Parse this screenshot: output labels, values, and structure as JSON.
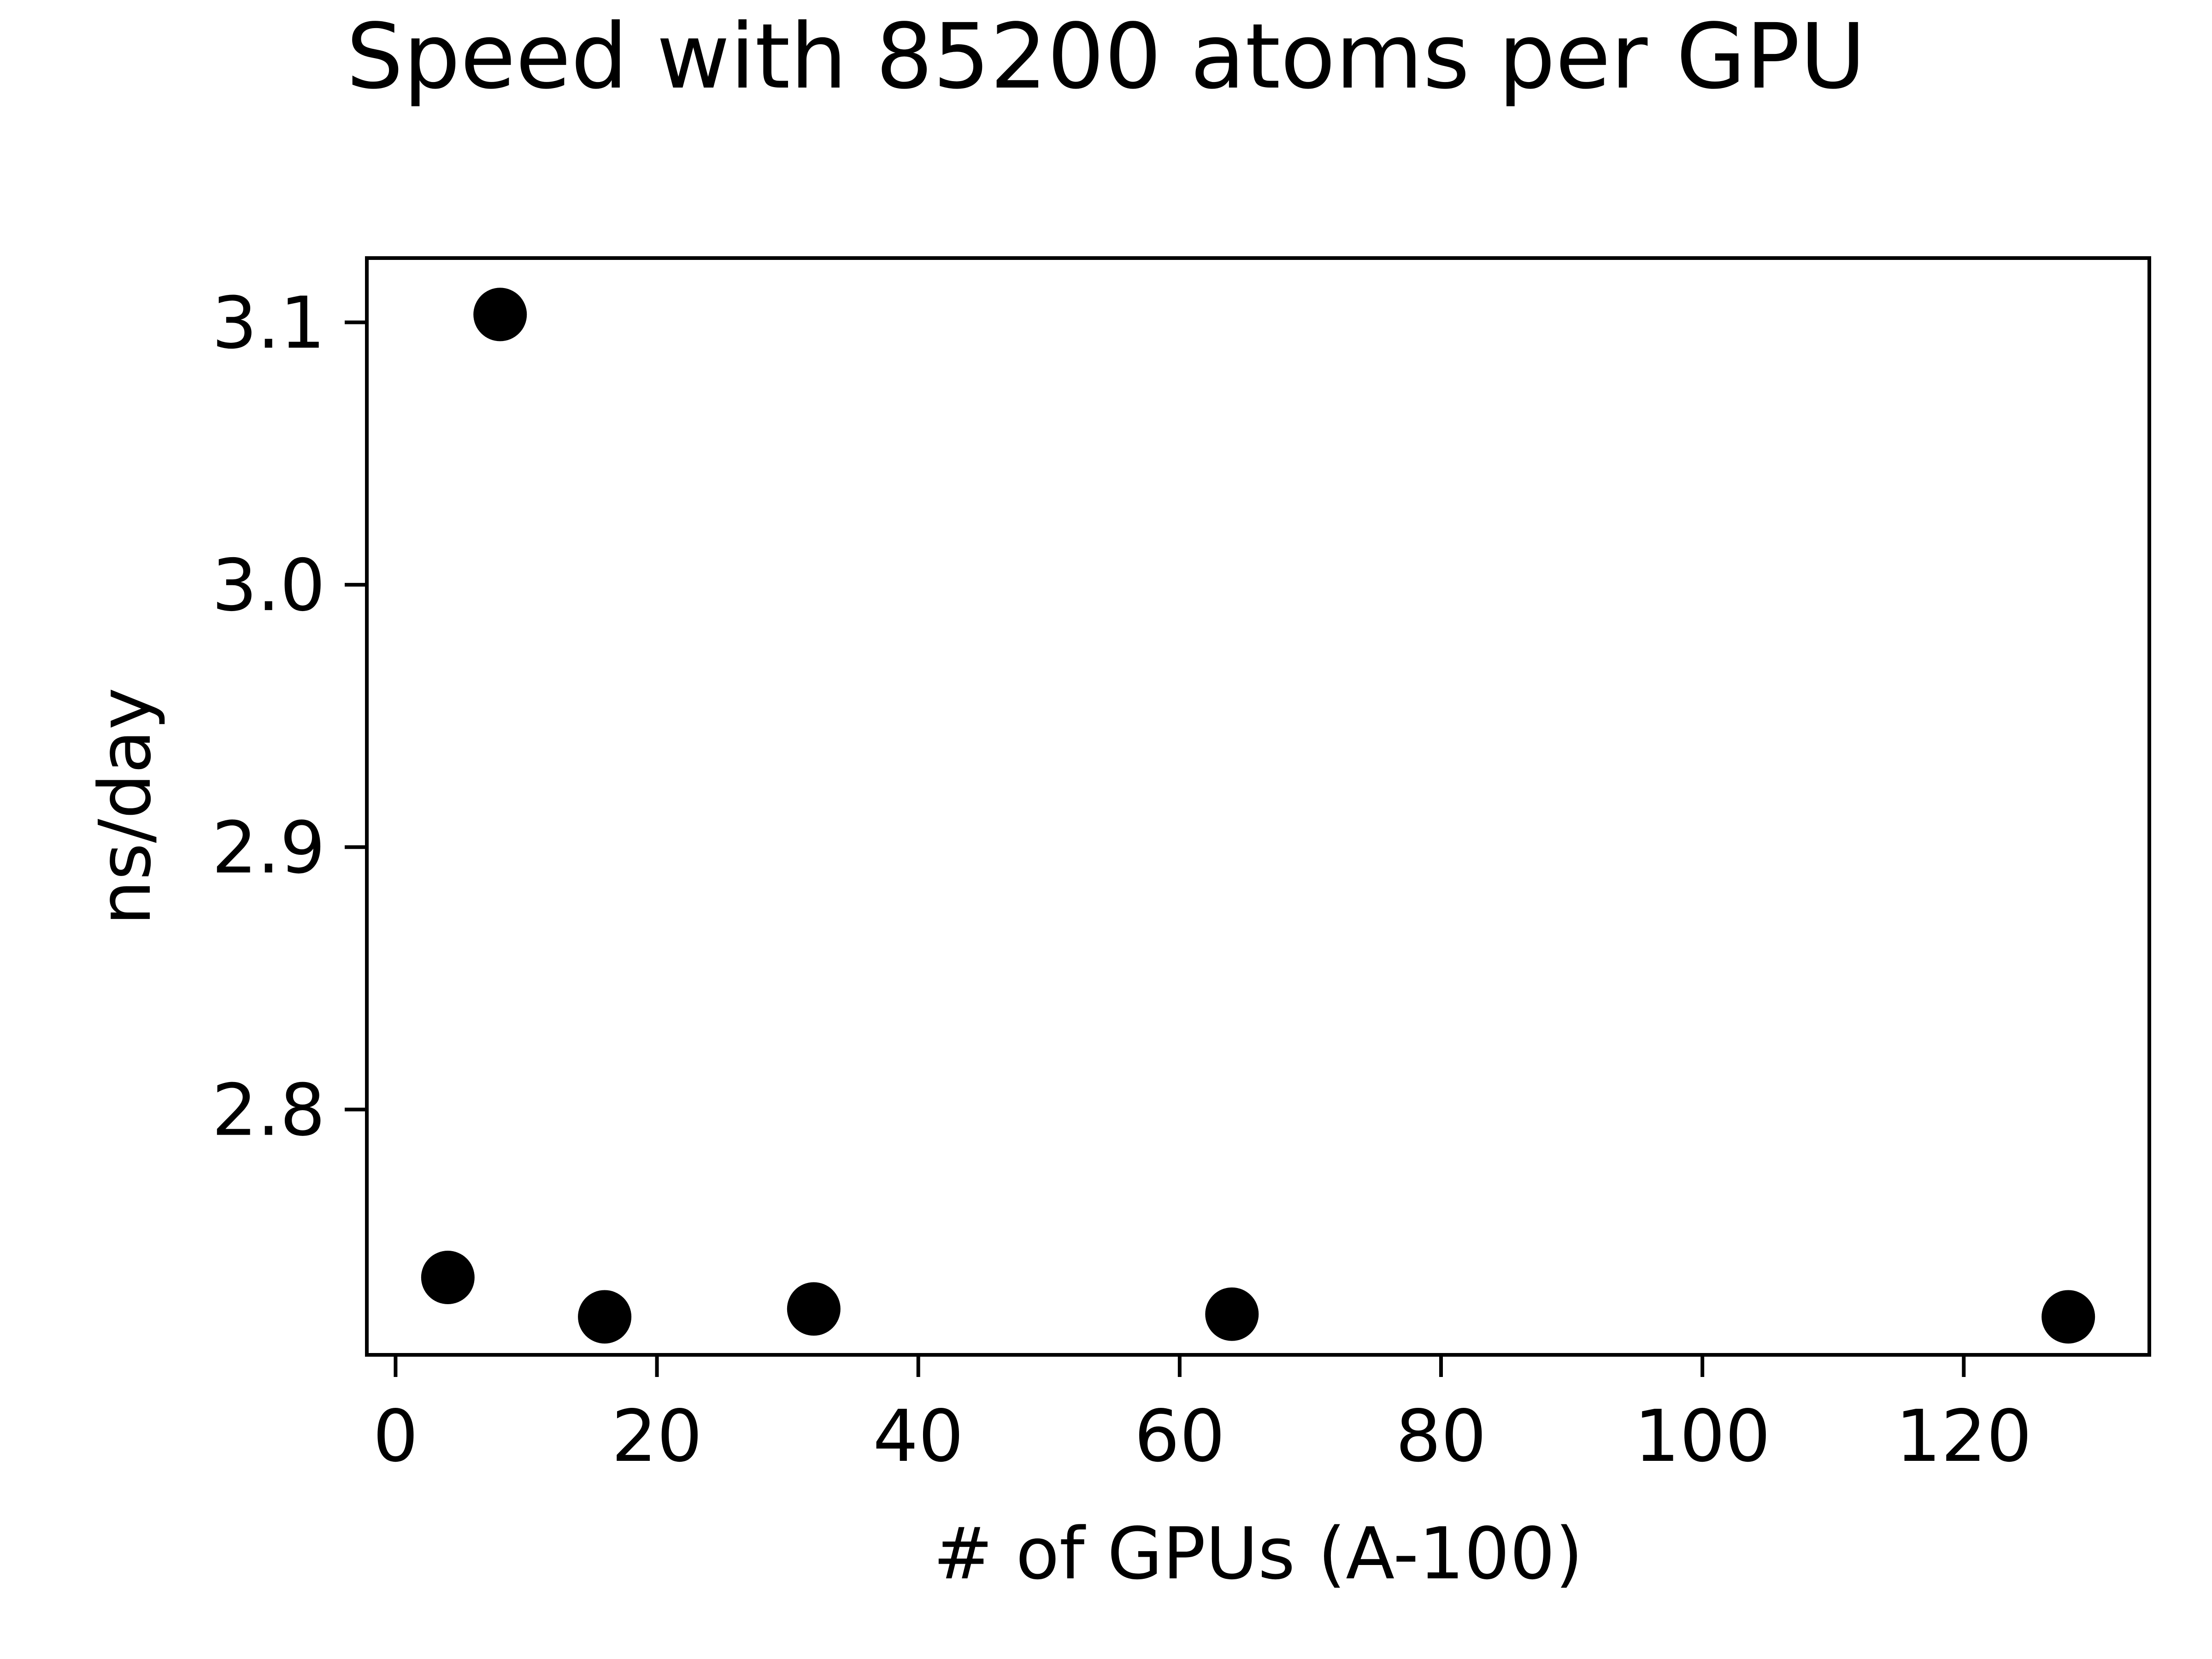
{
  "chart_data": {
    "type": "scatter",
    "title": "Speed with 85200 atoms per GPU",
    "xlabel": "# of GPUs (A-100)",
    "ylabel": "ns/day",
    "xlim": [
      -2.2,
      134.2
    ],
    "ylim": [
      2.7065,
      3.1245
    ],
    "xticks": [
      0,
      20,
      40,
      60,
      80,
      100,
      120
    ],
    "xtick_labels": [
      "0",
      "20",
      "40",
      "60",
      "80",
      "100",
      "120"
    ],
    "yticks": [
      2.8,
      2.9,
      3.0,
      3.1
    ],
    "ytick_labels": [
      "2.8",
      "2.9",
      "3.0",
      "3.1"
    ],
    "grid": false,
    "marker_color": "#000000",
    "series": [
      {
        "x": [
          4,
          8,
          16,
          32,
          64,
          128
        ],
        "y": [
          2.736,
          3.103,
          2.721,
          2.724,
          2.722,
          2.721
        ]
      }
    ]
  }
}
